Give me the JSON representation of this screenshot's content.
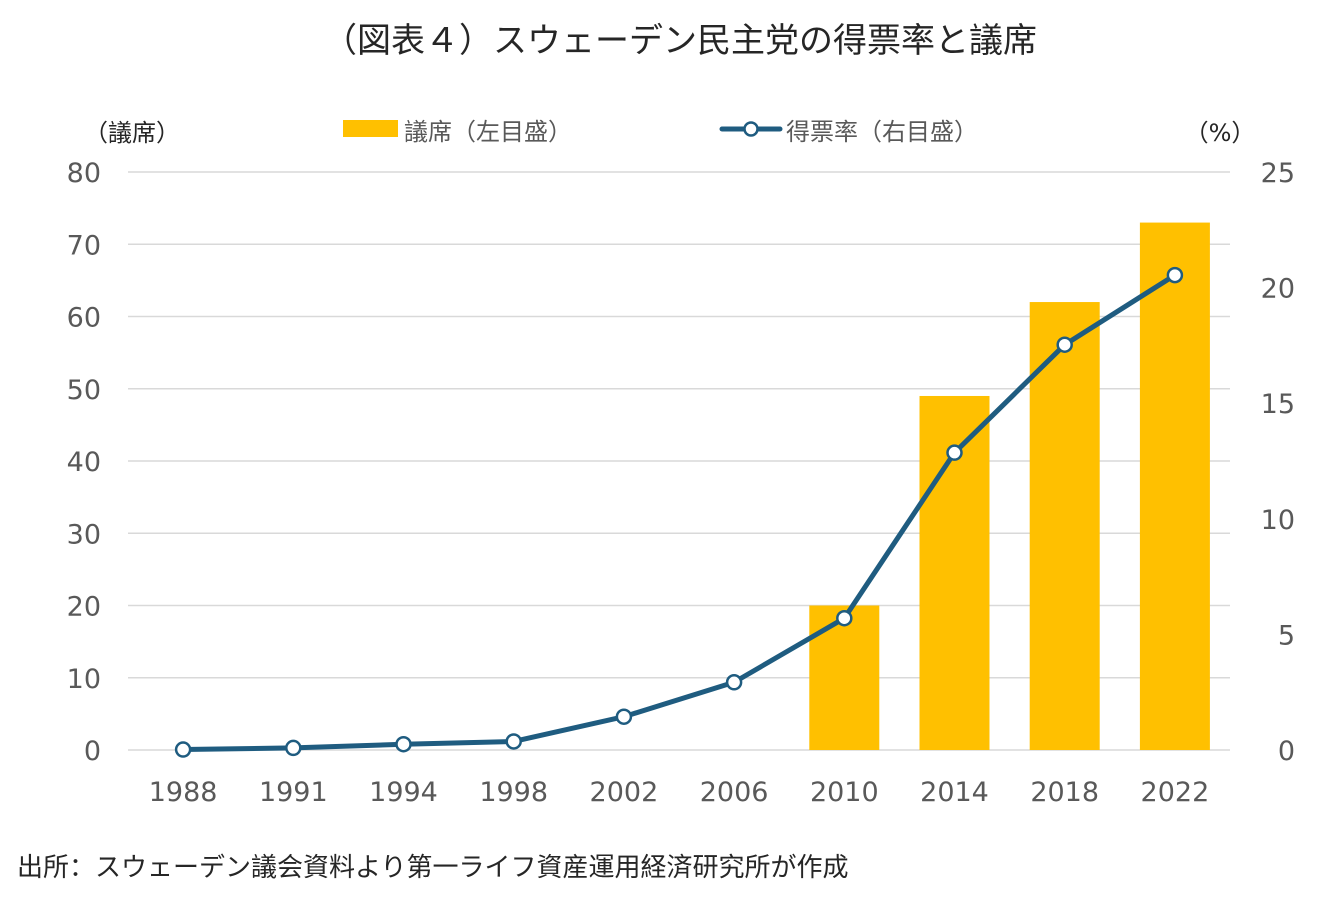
{
  "colors": {
    "bar": "#FFC000",
    "line": "#1F5C80",
    "marker_fill": "#FFFFFF",
    "grid": "#D9D9D9"
  },
  "chart_data": {
    "type": "bar",
    "title": "（図表４）スウェーデン民主党の得票率と議席",
    "categories": [
      "1988",
      "1991",
      "1994",
      "1998",
      "2002",
      "2006",
      "2010",
      "2014",
      "2018",
      "2022"
    ],
    "series": [
      {
        "name": "議席（左目盛）",
        "type": "bar",
        "axis": "left",
        "values": [
          0,
          0,
          0,
          0,
          0,
          0,
          20,
          49,
          62,
          73
        ]
      },
      {
        "name": "得票率（右目盛）",
        "type": "line",
        "axis": "right",
        "marker": "circle",
        "values": [
          0.02,
          0.09,
          0.25,
          0.37,
          1.44,
          2.93,
          5.7,
          12.86,
          17.53,
          20.54
        ]
      }
    ],
    "y_left": {
      "label": "（議席）",
      "ylim": [
        0,
        80
      ],
      "ticks": [
        "0",
        "10",
        "20",
        "30",
        "40",
        "50",
        "60",
        "70",
        "80"
      ]
    },
    "y_right": {
      "label": "（%）",
      "ylim": [
        0,
        25
      ],
      "ticks": [
        "0",
        "5",
        "10",
        "15",
        "20",
        "25"
      ]
    },
    "grid": true,
    "legend": "top-center"
  },
  "source": "出所：スウェーデン議会資料より第一ライフ資産運用経済研究所が作成"
}
